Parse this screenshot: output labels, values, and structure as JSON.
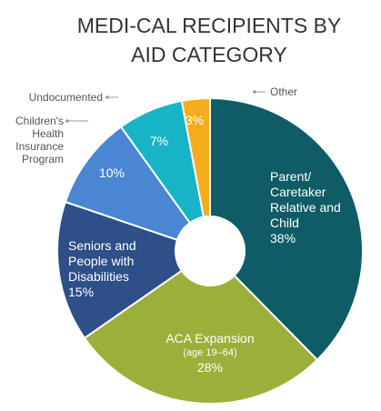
{
  "chart_data": {
    "type": "donut",
    "title": "MEDI-CAL RECIPIENTS BY AID CATEGORY",
    "categories": [
      "Parent/ Caretaker Relative and Child",
      "ACA Expansion",
      "Seniors and People with Disabilities",
      "Children's Health Insurance Program",
      "Undocumented",
      "Other"
    ],
    "values": [
      38,
      28,
      15,
      10,
      7,
      3
    ],
    "value_labels": [
      "38%",
      "28%",
      "15%",
      "10%",
      "7%",
      "3%"
    ],
    "colors": [
      "#0f5c66",
      "#9bb03b",
      "#2e4f87",
      "#4a86d2",
      "#17b4c8",
      "#f4ad1c"
    ],
    "annotation": "(age 19–64)"
  }
}
